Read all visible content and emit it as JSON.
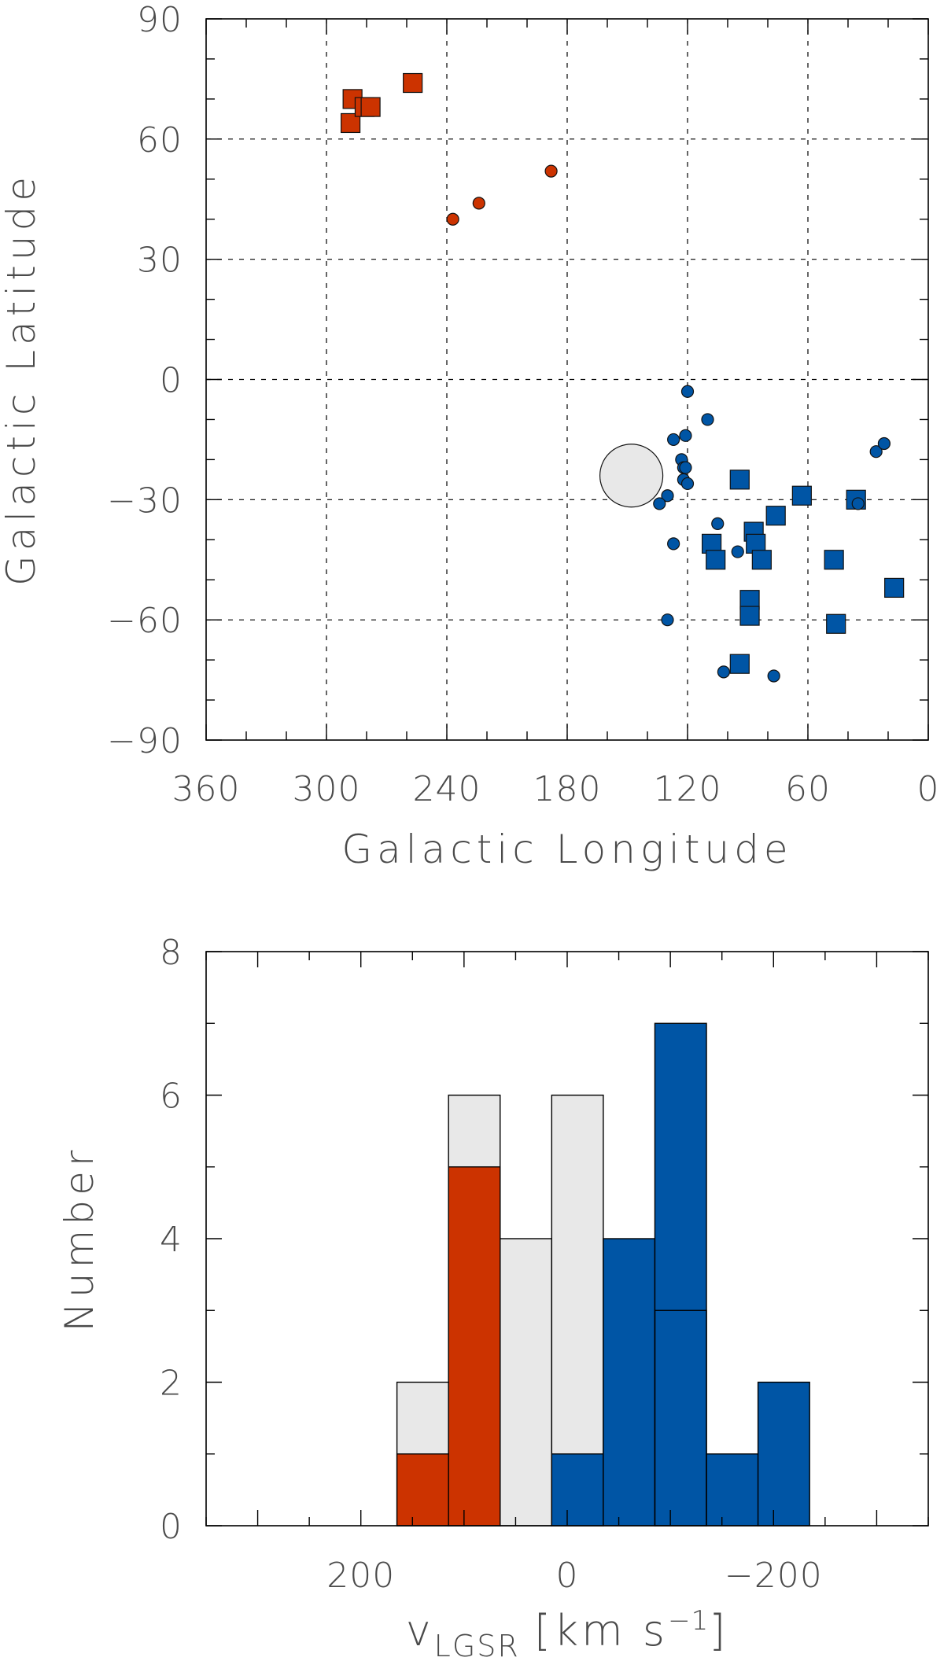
{
  "chart_data": [
    {
      "type": "scatter",
      "title": "",
      "xlabel": "Galactic Longitude",
      "ylabel": "Galactic Latitude",
      "xlim": [
        360,
        0
      ],
      "ylim": [
        -90,
        90
      ],
      "xticks": [
        "360",
        "300",
        "240",
        "180",
        "120",
        "60",
        "0"
      ],
      "xtick_values": [
        360,
        300,
        240,
        180,
        120,
        60,
        0
      ],
      "yticks": [
        "−90",
        "−60",
        "−30",
        "0",
        "30",
        "60",
        "90"
      ],
      "ytick_values": [
        -90,
        -60,
        -30,
        0,
        30,
        60,
        90
      ],
      "grid": "dashed at major ticks",
      "colors": {
        "red": "#cc3300",
        "blue": "#0055a5",
        "gray": "#e8e8e8"
      },
      "series": [
        {
          "marker": "square",
          "color": "red",
          "points": [
            [
              287,
              70
            ],
            [
              288,
              64
            ],
            [
              281,
              68
            ],
            [
              278,
              68
            ],
            [
              257,
              74
            ]
          ]
        },
        {
          "marker": "circle-small",
          "color": "red",
          "points": [
            [
              237,
              40
            ],
            [
              224,
              44
            ],
            [
              188,
              52
            ]
          ]
        },
        {
          "marker": "square",
          "color": "blue",
          "points": [
            [
              94,
              -25
            ],
            [
              63,
              -29
            ],
            [
              36,
              -30
            ],
            [
              76,
              -34
            ],
            [
              87,
              -38
            ],
            [
              86,
              -41
            ],
            [
              108,
              -41
            ],
            [
              106,
              -45
            ],
            [
              83,
              -45
            ],
            [
              47,
              -45
            ],
            [
              17,
              -52
            ],
            [
              89,
              -55
            ],
            [
              89,
              -59
            ],
            [
              46,
              -61
            ],
            [
              94,
              -71
            ]
          ]
        },
        {
          "marker": "circle",
          "color": "blue",
          "points": [
            [
              120,
              -3
            ],
            [
              110,
              -10
            ],
            [
              121,
              -14
            ],
            [
              127,
              -15
            ],
            [
              123,
              -20
            ],
            [
              122,
              -22
            ],
            [
              121,
              -22
            ],
            [
              122,
              -25
            ],
            [
              120,
              -26
            ],
            [
              130,
              -29
            ],
            [
              134,
              -31
            ],
            [
              35,
              -31
            ],
            [
              26,
              -18
            ],
            [
              22,
              -16
            ],
            [
              105,
              -36
            ],
            [
              127,
              -41
            ],
            [
              95,
              -43
            ],
            [
              130,
              -60
            ],
            [
              102,
              -73
            ],
            [
              77,
              -74
            ]
          ]
        },
        {
          "marker": "circle-large",
          "color": "gray",
          "points": [
            [
              148,
              -24
            ]
          ]
        }
      ]
    },
    {
      "type": "bar",
      "title": "",
      "xlabel": "v",
      "xlabel_sub": "LGSR",
      "xlabel_unit_open": "[km s",
      "xlabel_unit_sup": "−1",
      "xlabel_unit_close": "]",
      "ylabel": "Number",
      "xlim": [
        350,
        -350
      ],
      "ylim": [
        0,
        8
      ],
      "xticks": [
        "200",
        "0",
        "−200"
      ],
      "xtick_values": [
        200,
        0,
        -200
      ],
      "yticks": [
        "0",
        "2",
        "4",
        "6",
        "8"
      ],
      "ytick_values": [
        0,
        2,
        4,
        6,
        8
      ],
      "bin_width": 50,
      "stacked": true,
      "series": [
        {
          "color": "gray",
          "bins": [
            [
              165,
              115,
              2
            ],
            [
              115,
              65,
              6
            ],
            [
              65,
              15,
              4
            ],
            [
              15,
              -35,
              6
            ]
          ]
        },
        {
          "color": "red",
          "bins": [
            [
              165,
              115,
              1
            ],
            [
              115,
              65,
              5
            ]
          ]
        },
        {
          "color": "blue",
          "bins": [
            [
              15,
              -35,
              1
            ],
            [
              -35,
              -85,
              4
            ],
            [
              -85,
              -135,
              7
            ],
            [
              -135,
              -185,
              1
            ],
            [
              -185,
              -235,
              2
            ]
          ]
        },
        {
          "color": "blue-outline",
          "bins": [
            [
              -85,
              -135,
              3
            ]
          ]
        }
      ]
    }
  ]
}
